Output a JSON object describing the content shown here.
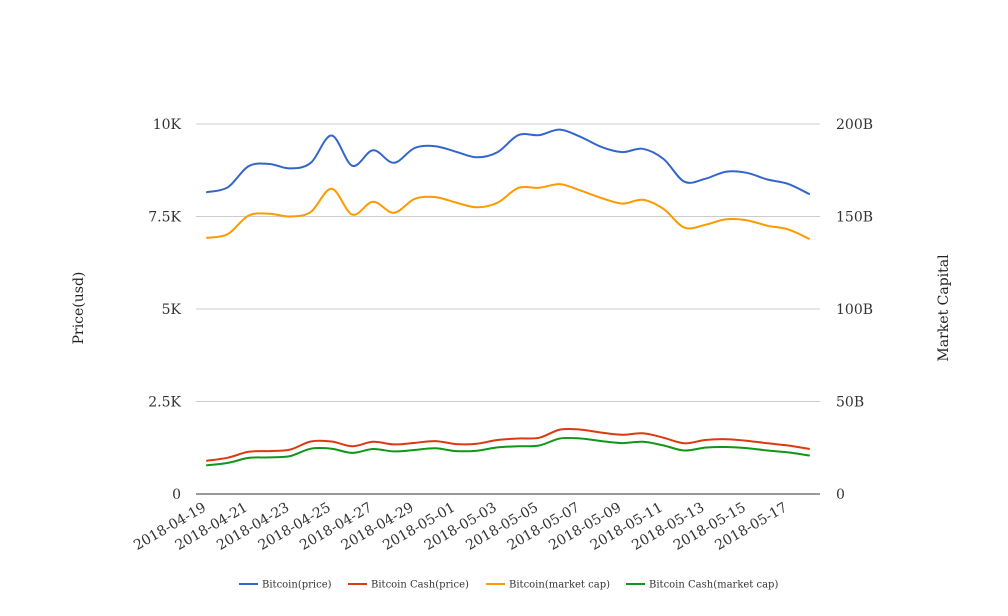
{
  "chart_data": {
    "type": "line",
    "title": "",
    "ylabel": "Price(usd)",
    "y2label": "Market Capital",
    "ylim": [
      0,
      10000
    ],
    "y2lim": [
      0,
      200000000000
    ],
    "grid": true,
    "legend_position": "bottom",
    "yticks": [
      {
        "value": 0,
        "label": "0"
      },
      {
        "value": 2500,
        "label": "2.5K"
      },
      {
        "value": 5000,
        "label": "5K"
      },
      {
        "value": 7500,
        "label": "7.5K"
      },
      {
        "value": 10000,
        "label": "10K"
      }
    ],
    "y2ticks": [
      {
        "value": 0,
        "label": "0"
      },
      {
        "value": 50000000000,
        "label": "50B"
      },
      {
        "value": 100000000000,
        "label": "100B"
      },
      {
        "value": 150000000000,
        "label": "150B"
      },
      {
        "value": 200000000000,
        "label": "200B"
      }
    ],
    "x": [
      "2018-04-19",
      "2018-04-20",
      "2018-04-21",
      "2018-04-22",
      "2018-04-23",
      "2018-04-24",
      "2018-04-25",
      "2018-04-26",
      "2018-04-27",
      "2018-04-28",
      "2018-04-29",
      "2018-04-30",
      "2018-05-01",
      "2018-05-02",
      "2018-05-03",
      "2018-05-04",
      "2018-05-05",
      "2018-05-06",
      "2018-05-07",
      "2018-05-08",
      "2018-05-09",
      "2018-05-10",
      "2018-05-11",
      "2018-05-12",
      "2018-05-13",
      "2018-05-14",
      "2018-05-15",
      "2018-05-16",
      "2018-05-17",
      "2018-05-18"
    ],
    "xticks": [
      "2018-04-19",
      "2018-04-21",
      "2018-04-23",
      "2018-04-25",
      "2018-04-27",
      "2018-04-29",
      "2018-05-01",
      "2018-05-03",
      "2018-05-05",
      "2018-05-07",
      "2018-05-09",
      "2018-05-11",
      "2018-05-13",
      "2018-05-15",
      "2018-05-17"
    ],
    "series": [
      {
        "name": "Bitcoin(price)",
        "axis": "left",
        "color": "#3366cc",
        "values": [
          8160,
          8290,
          8860,
          8920,
          8800,
          8950,
          9690,
          8870,
          9290,
          8950,
          9350,
          9400,
          9250,
          9100,
          9240,
          9700,
          9700,
          9850,
          9650,
          9380,
          9240,
          9330,
          9050,
          8440,
          8520,
          8710,
          8680,
          8500,
          8380,
          8110
        ]
      },
      {
        "name": "Bitcoin Cash(price)",
        "axis": "left",
        "color": "#dc3912",
        "values": [
          900,
          980,
          1140,
          1160,
          1200,
          1420,
          1420,
          1290,
          1410,
          1340,
          1380,
          1430,
          1350,
          1360,
          1460,
          1500,
          1520,
          1740,
          1740,
          1660,
          1600,
          1640,
          1520,
          1370,
          1460,
          1480,
          1440,
          1370,
          1310,
          1220
        ]
      },
      {
        "name": "Bitcoin(market cap)",
        "axis": "right",
        "color": "#ff9900",
        "values": [
          138500000000,
          140500000000,
          150500000000,
          151500000000,
          150000000000,
          152500000000,
          165000000000,
          151000000000,
          158000000000,
          152000000000,
          159500000000,
          160500000000,
          157500000000,
          155000000000,
          157500000000,
          165500000000,
          165500000000,
          167500000000,
          164000000000,
          160000000000,
          157000000000,
          159000000000,
          154000000000,
          144000000000,
          145500000000,
          148500000000,
          148000000000,
          145000000000,
          143000000000,
          138000000000
        ]
      },
      {
        "name": "Bitcoin Cash(market cap)",
        "axis": "right",
        "color": "#109618",
        "values": [
          15500000000,
          16800000000,
          19500000000,
          19800000000,
          20500000000,
          24500000000,
          24500000000,
          22200000000,
          24300000000,
          23000000000,
          23800000000,
          24700000000,
          23200000000,
          23400000000,
          25200000000,
          25800000000,
          26200000000,
          30000000000,
          30000000000,
          28600000000,
          27500000000,
          28200000000,
          26200000000,
          23500000000,
          25100000000,
          25400000000,
          24800000000,
          23500000000,
          22500000000,
          20800000000
        ]
      }
    ]
  }
}
